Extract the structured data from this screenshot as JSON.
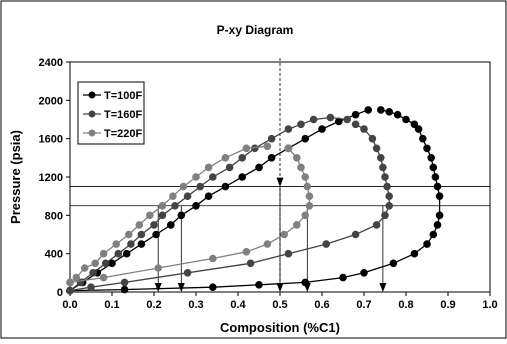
{
  "chart_data": {
    "type": "scatter",
    "title": "P-xy Diagram",
    "xlabel": "Composition (%C1)",
    "ylabel": "Pressure (psia)",
    "xlim": [
      0.0,
      1.0
    ],
    "ylim": [
      0,
      2400
    ],
    "xticks": [
      "0.0",
      "0.1",
      "0.2",
      "0.3",
      "0.4",
      "0.5",
      "0.6",
      "0.7",
      "0.8",
      "0.9",
      "1.0"
    ],
    "yticks": [
      "0",
      "400",
      "800",
      "1200",
      "1600",
      "2000",
      "2400"
    ],
    "grid": false,
    "legend_position": "top-left",
    "series": [
      {
        "name": "T=100F",
        "color": "#000000",
        "bubble": [
          [
            0.0,
            14.7
          ],
          [
            0.03,
            100
          ],
          [
            0.065,
            200
          ],
          [
            0.1,
            300
          ],
          [
            0.135,
            400
          ],
          [
            0.17,
            500
          ],
          [
            0.205,
            600
          ],
          [
            0.24,
            700
          ],
          [
            0.265,
            800
          ],
          [
            0.3,
            900
          ],
          [
            0.33,
            1000
          ],
          [
            0.37,
            1100
          ],
          [
            0.41,
            1200
          ],
          [
            0.45,
            1300
          ],
          [
            0.48,
            1400
          ],
          [
            0.52,
            1500
          ],
          [
            0.56,
            1600
          ],
          [
            0.6,
            1700
          ],
          [
            0.64,
            1780
          ],
          [
            0.68,
            1850
          ],
          [
            0.71,
            1900
          ]
        ],
        "dew": [
          [
            0.0,
            14.7
          ],
          [
            0.13,
            25
          ],
          [
            0.34,
            50
          ],
          [
            0.45,
            75
          ],
          [
            0.56,
            100
          ],
          [
            0.65,
            150
          ],
          [
            0.7,
            200
          ],
          [
            0.77,
            300
          ],
          [
            0.82,
            400
          ],
          [
            0.85,
            500
          ],
          [
            0.865,
            600
          ],
          [
            0.875,
            700
          ],
          [
            0.88,
            800
          ],
          [
            0.88,
            1000
          ],
          [
            0.875,
            1100
          ],
          [
            0.87,
            1200
          ],
          [
            0.865,
            1300
          ],
          [
            0.86,
            1400
          ],
          [
            0.85,
            1500
          ],
          [
            0.84,
            1600
          ],
          [
            0.83,
            1700
          ],
          [
            0.82,
            1750
          ],
          [
            0.8,
            1800
          ],
          [
            0.78,
            1850
          ],
          [
            0.76,
            1880
          ],
          [
            0.74,
            1900
          ]
        ]
      },
      {
        "name": "T=160F",
        "color": "#444444",
        "bubble": [
          [
            0.0,
            14.7
          ],
          [
            0.025,
            100
          ],
          [
            0.055,
            200
          ],
          [
            0.085,
            300
          ],
          [
            0.115,
            400
          ],
          [
            0.145,
            500
          ],
          [
            0.17,
            600
          ],
          [
            0.2,
            700
          ],
          [
            0.22,
            800
          ],
          [
            0.25,
            900
          ],
          [
            0.28,
            1000
          ],
          [
            0.31,
            1100
          ],
          [
            0.34,
            1200
          ],
          [
            0.38,
            1300
          ],
          [
            0.41,
            1400
          ],
          [
            0.44,
            1500
          ],
          [
            0.48,
            1600
          ],
          [
            0.52,
            1700
          ],
          [
            0.55,
            1750
          ],
          [
            0.58,
            1800
          ],
          [
            0.62,
            1820
          ],
          [
            0.66,
            1800
          ]
        ],
        "dew": [
          [
            0.0,
            14.7
          ],
          [
            0.05,
            50
          ],
          [
            0.13,
            100
          ],
          [
            0.28,
            200
          ],
          [
            0.43,
            300
          ],
          [
            0.52,
            400
          ],
          [
            0.61,
            500
          ],
          [
            0.68,
            600
          ],
          [
            0.73,
            700
          ],
          [
            0.75,
            800
          ],
          [
            0.76,
            900
          ],
          [
            0.76,
            1000
          ],
          [
            0.755,
            1100
          ],
          [
            0.75,
            1200
          ],
          [
            0.745,
            1300
          ],
          [
            0.74,
            1400
          ],
          [
            0.73,
            1500
          ],
          [
            0.72,
            1600
          ],
          [
            0.7,
            1700
          ],
          [
            0.68,
            1750
          ]
        ]
      },
      {
        "name": "T=220F",
        "color": "#808080",
        "bubble": [
          [
            0.0,
            100
          ],
          [
            0.015,
            150
          ],
          [
            0.035,
            250
          ],
          [
            0.06,
            300
          ],
          [
            0.08,
            400
          ],
          [
            0.11,
            500
          ],
          [
            0.14,
            600
          ],
          [
            0.165,
            700
          ],
          [
            0.19,
            800
          ],
          [
            0.22,
            900
          ],
          [
            0.245,
            1000
          ],
          [
            0.27,
            1100
          ],
          [
            0.3,
            1200
          ],
          [
            0.33,
            1300
          ],
          [
            0.37,
            1400
          ],
          [
            0.42,
            1500
          ],
          [
            0.47,
            1520
          ]
        ],
        "dew": [
          [
            0.0,
            100
          ],
          [
            0.08,
            150
          ],
          [
            0.21,
            250
          ],
          [
            0.34,
            350
          ],
          [
            0.42,
            420
          ],
          [
            0.47,
            500
          ],
          [
            0.51,
            600
          ],
          [
            0.54,
            700
          ],
          [
            0.56,
            800
          ],
          [
            0.57,
            900
          ],
          [
            0.57,
            1000
          ],
          [
            0.565,
            1100
          ],
          [
            0.56,
            1200
          ],
          [
            0.55,
            1300
          ],
          [
            0.54,
            1400
          ],
          [
            0.52,
            1500
          ]
        ]
      }
    ],
    "reference_lines": {
      "horizontal_pressures": [
        900,
        1100
      ],
      "vertical_compositions": [
        0.5
      ],
      "arrow_compositions": [
        0.21,
        0.265,
        0.5,
        0.565,
        0.745
      ]
    }
  }
}
